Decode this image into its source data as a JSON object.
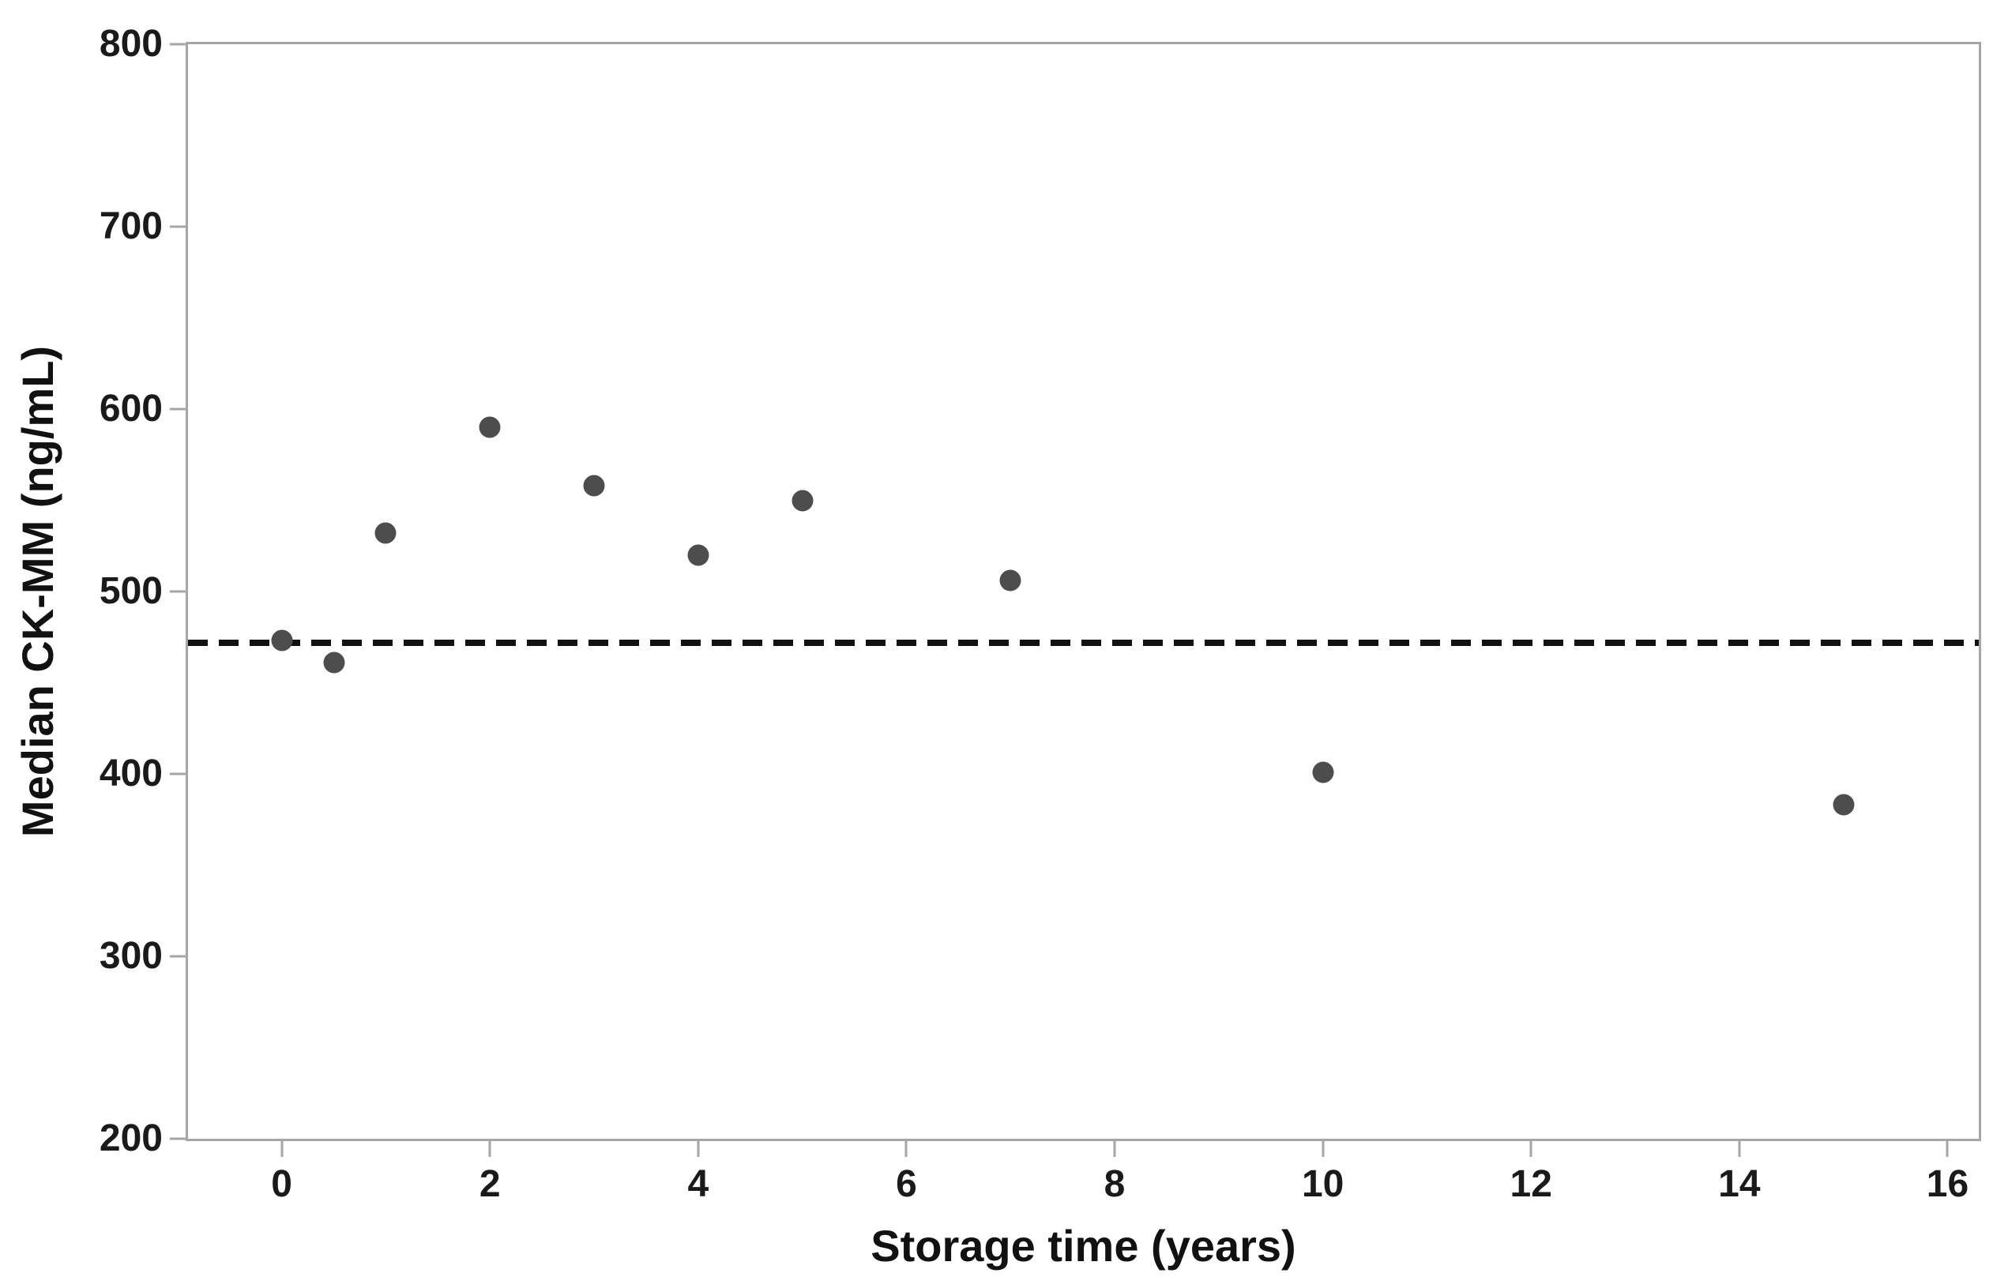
{
  "chart_data": {
    "type": "scatter",
    "title": "",
    "xlabel": "Storage time (years)",
    "ylabel": "Median CK-MM (ng/mL)",
    "x": [
      0,
      0.5,
      1,
      2,
      3,
      4,
      5,
      7,
      10,
      15
    ],
    "y": [
      473,
      461,
      532,
      590,
      558,
      520,
      550,
      506,
      401,
      383
    ],
    "points": [
      {
        "x": 0,
        "y": 473
      },
      {
        "x": 0.5,
        "y": 461
      },
      {
        "x": 1,
        "y": 532
      },
      {
        "x": 2,
        "y": 590
      },
      {
        "x": 3,
        "y": 558
      },
      {
        "x": 4,
        "y": 520
      },
      {
        "x": 5,
        "y": 550
      },
      {
        "x": 7,
        "y": 506
      },
      {
        "x": 10,
        "y": 401
      },
      {
        "x": 15,
        "y": 383
      }
    ],
    "reference_line": {
      "y": 472,
      "style": "dashed",
      "color": "#111111"
    },
    "x_ticks": [
      0,
      2,
      4,
      6,
      8,
      10,
      12,
      14,
      16
    ],
    "y_ticks": [
      200,
      300,
      400,
      500,
      600,
      700,
      800
    ],
    "xlim": [
      -0.9,
      16.3
    ],
    "ylim": [
      200,
      800
    ],
    "grid": false,
    "legend": false,
    "marker_color": "#4d4d4d",
    "marker_diameter_px": 27,
    "axis_color": "#a6a6a6",
    "text_color": "#1a1a1a"
  }
}
